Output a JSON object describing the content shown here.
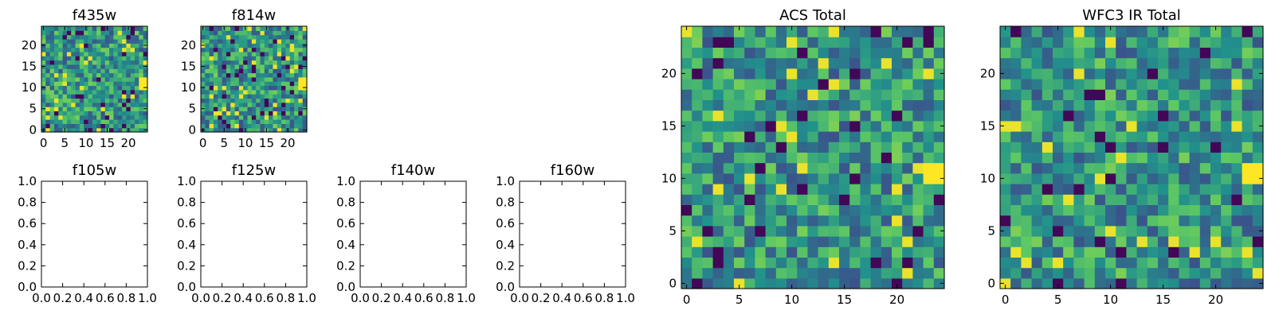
{
  "figure": {
    "colormap": "viridis",
    "colormap_stops": [
      "#440154",
      "#3b528b",
      "#21918c",
      "#5ec962",
      "#fde725"
    ]
  },
  "chart_data": [
    {
      "type": "heatmap",
      "title": "f435w",
      "xticks": [
        "0",
        "5",
        "10",
        "15",
        "20"
      ],
      "yticks": [
        "0",
        "5",
        "10",
        "15",
        "20"
      ],
      "xlim": [
        -0.5,
        24.5
      ],
      "ylim": [
        -0.5,
        24.5
      ],
      "grid_size": [
        25,
        25
      ],
      "bright_spot": [
        24,
        11
      ],
      "seed": 11
    },
    {
      "type": "heatmap",
      "title": "f814w",
      "xticks": [
        "0",
        "5",
        "10",
        "15",
        "20"
      ],
      "yticks": [
        "0",
        "5",
        "10",
        "15",
        "20"
      ],
      "xlim": [
        -0.5,
        24.5
      ],
      "ylim": [
        -0.5,
        24.5
      ],
      "grid_size": [
        25,
        25
      ],
      "bright_spot": [
        24,
        11
      ],
      "seed": 23
    },
    {
      "type": "empty",
      "title": "f105w",
      "xticks": [
        "0.0",
        "0.2",
        "0.4",
        "0.6",
        "0.8",
        "1.0"
      ],
      "yticks": [
        "0.0",
        "0.2",
        "0.4",
        "0.6",
        "0.8",
        "1.0"
      ],
      "xlim": [
        0,
        1
      ],
      "ylim": [
        0,
        1
      ]
    },
    {
      "type": "empty",
      "title": "f125w",
      "xticks": [
        "0.0",
        "0.2",
        "0.4",
        "0.6",
        "0.8",
        "1.0"
      ],
      "yticks": [
        "0.0",
        "0.2",
        "0.4",
        "0.6",
        "0.8",
        "1.0"
      ],
      "xlim": [
        0,
        1
      ],
      "ylim": [
        0,
        1
      ]
    },
    {
      "type": "empty",
      "title": "f140w",
      "xticks": [
        "0.0",
        "0.2",
        "0.4",
        "0.6",
        "0.8",
        "1.0"
      ],
      "yticks": [
        "0.0",
        "0.2",
        "0.4",
        "0.6",
        "0.8",
        "1.0"
      ],
      "xlim": [
        0,
        1
      ],
      "ylim": [
        0,
        1
      ]
    },
    {
      "type": "empty",
      "title": "f160w",
      "xticks": [
        "0.0",
        "0.2",
        "0.4",
        "0.6",
        "0.8",
        "1.0"
      ],
      "yticks": [
        "0.0",
        "0.2",
        "0.4",
        "0.6",
        "0.8",
        "1.0"
      ],
      "xlim": [
        0,
        1
      ],
      "ylim": [
        0,
        1
      ]
    },
    {
      "type": "heatmap",
      "title": "ACS Total",
      "xticks": [
        "0",
        "5",
        "10",
        "15",
        "20"
      ],
      "yticks": [
        "0",
        "5",
        "10",
        "15",
        "20"
      ],
      "xlim": [
        -0.5,
        24.5
      ],
      "ylim": [
        -0.5,
        24.5
      ],
      "grid_size": [
        25,
        25
      ],
      "bright_spot": [
        23.5,
        10.5
      ],
      "seed": 37
    },
    {
      "type": "heatmap",
      "title": "WFC3 IR Total",
      "xticks": [
        "0",
        "5",
        "10",
        "15",
        "20"
      ],
      "yticks": [
        "0",
        "5",
        "10",
        "15",
        "20"
      ],
      "xlim": [
        -0.5,
        24.5
      ],
      "ylim": [
        -0.5,
        24.5
      ],
      "grid_size": [
        25,
        25
      ],
      "bright_spot": [
        23.5,
        10.5
      ],
      "seed": 53
    }
  ]
}
